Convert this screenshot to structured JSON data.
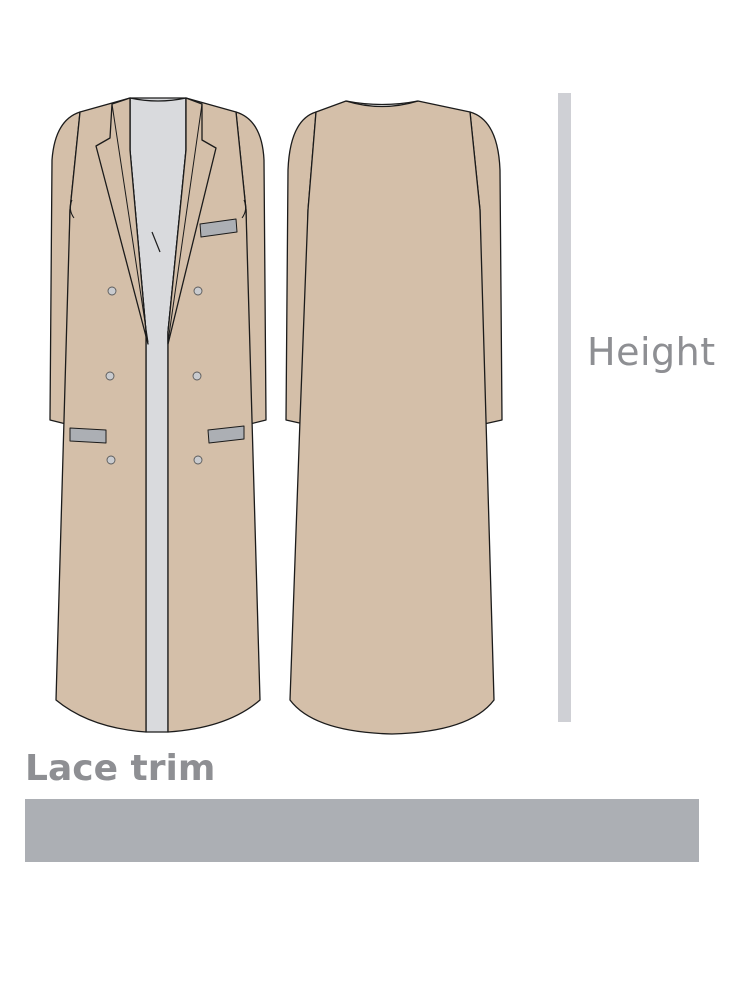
{
  "labels": {
    "height": "Height",
    "lace_trim": "Lace trim"
  },
  "colors": {
    "fabric": "#d4bfa9",
    "lining": "#d9dadd",
    "trim": "#acafb4",
    "measure_bar": "#cfd0d5",
    "outline": "#1b1b1b",
    "label_text": "#8e8f93"
  },
  "views": [
    "front",
    "back"
  ],
  "front_buttons": 6
}
